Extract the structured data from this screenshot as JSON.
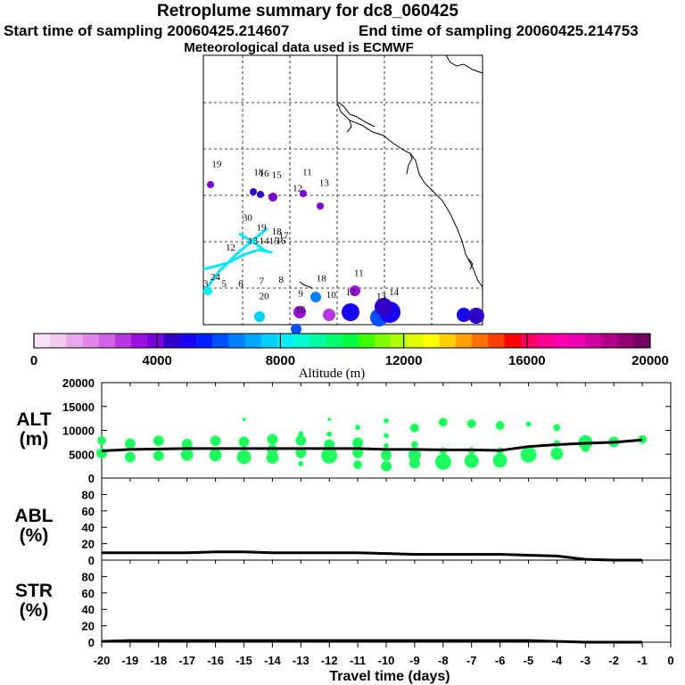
{
  "header": {
    "title": "Retroplume summary for dc8_060425",
    "start_label": "Start time of sampling 20060425.214607",
    "end_label": "End time of sampling 20060425.214753",
    "met_label": "Meteorological data used is ECMWF"
  },
  "map": {
    "labels": [
      {
        "text": "19",
        "lon": 0.03,
        "lat": 0.415
      },
      {
        "text": "18",
        "lon": 0.18,
        "lat": 0.445
      },
      {
        "text": "16",
        "lon": 0.2,
        "lat": 0.45
      },
      {
        "text": "15",
        "lon": 0.245,
        "lat": 0.455
      },
      {
        "text": "11",
        "lon": 0.355,
        "lat": 0.445
      },
      {
        "text": "13",
        "lon": 0.415,
        "lat": 0.485
      },
      {
        "text": "12",
        "lon": 0.32,
        "lat": 0.505
      },
      {
        "text": "30",
        "lon": 0.14,
        "lat": 0.615
      },
      {
        "text": "19",
        "lon": 0.19,
        "lat": 0.65
      },
      {
        "text": "18",
        "lon": 0.245,
        "lat": 0.665
      },
      {
        "text": "17",
        "lon": 0.27,
        "lat": 0.68
      },
      {
        "text": "12",
        "lon": 0.08,
        "lat": 0.725
      },
      {
        "text": "13",
        "lon": 0.16,
        "lat": 0.7
      },
      {
        "text": "14",
        "lon": 0.2,
        "lat": 0.7
      },
      {
        "text": "15",
        "lon": 0.235,
        "lat": 0.7
      },
      {
        "text": "16",
        "lon": 0.26,
        "lat": 0.7
      },
      {
        "text": "24",
        "lon": 0.025,
        "lat": 0.835
      },
      {
        "text": "3",
        "lon": 0.0,
        "lat": 0.86
      },
      {
        "text": "5",
        "lon": 0.065,
        "lat": 0.86
      },
      {
        "text": "6",
        "lon": 0.125,
        "lat": 0.86
      },
      {
        "text": "7",
        "lon": 0.2,
        "lat": 0.85
      },
      {
        "text": "8",
        "lon": 0.27,
        "lat": 0.845
      },
      {
        "text": "18",
        "lon": 0.405,
        "lat": 0.84
      },
      {
        "text": "11",
        "lon": 0.54,
        "lat": 0.82
      },
      {
        "text": "20",
        "lon": 0.2,
        "lat": 0.905
      },
      {
        "text": "9",
        "lon": 0.34,
        "lat": 0.895
      },
      {
        "text": "10",
        "lon": 0.44,
        "lat": 0.9
      },
      {
        "text": "12",
        "lon": 0.51,
        "lat": 0.89
      },
      {
        "text": "13",
        "lon": 0.62,
        "lat": 0.905
      },
      {
        "text": "14",
        "lon": 0.665,
        "lat": 0.89
      },
      {
        "text": "16",
        "lon": 0.33,
        "lat": 0.955
      }
    ]
  },
  "colorbar": {
    "title": "Altitude (m)",
    "tick_labels": [
      "0",
      "4000",
      "8000",
      "12000",
      "16000",
      "20000"
    ],
    "colors": [
      "#f7e1f7",
      "#f0c8f0",
      "#e8a8ec",
      "#e086e8",
      "#d060e4",
      "#b838e0",
      "#9a10dc",
      "#7800d8",
      "#3000c8",
      "#1800f0",
      "#0020ff",
      "#0050ff",
      "#0080ff",
      "#00a8ff",
      "#00d0ff",
      "#00f0ff",
      "#00ffd0",
      "#00ffa0",
      "#00ff70",
      "#00ff40",
      "#40ff00",
      "#80ff00",
      "#b0ff00",
      "#e0ff00",
      "#ffff00",
      "#ffd000",
      "#ffa000",
      "#ff7000",
      "#ff4000",
      "#ff0000",
      "#ff0060",
      "#ff0090",
      "#ff00b0",
      "#f000b0",
      "#d0009a",
      "#b00088",
      "#900070",
      "#700060"
    ]
  },
  "chart_data": [
    {
      "type": "scatter",
      "panel": "ALT",
      "ylabel": "ALT (m)",
      "ylim": [
        0,
        20000
      ],
      "yticks": [
        "20000",
        "15000",
        "10000",
        "5000",
        "0"
      ],
      "x": [
        -20,
        -19,
        -18,
        -17,
        -16,
        -15,
        -14,
        -13,
        -12,
        -11,
        -10,
        -9,
        -8,
        -7,
        -6,
        -5,
        -4,
        -3,
        -2,
        -1
      ],
      "median": [
        5700,
        6000,
        6100,
        6200,
        6200,
        6200,
        6200,
        6200,
        6200,
        6200,
        6000,
        6000,
        5900,
        5900,
        5800,
        6600,
        7000,
        7300,
        7500,
        8000
      ],
      "points": [
        [
          -20,
          7900,
          5
        ],
        [
          -20,
          5200,
          6
        ],
        [
          -19,
          7200,
          6
        ],
        [
          -19,
          4400,
          6
        ],
        [
          -18,
          7800,
          6
        ],
        [
          -18,
          4700,
          6
        ],
        [
          -17,
          7100,
          6
        ],
        [
          -17,
          4900,
          7
        ],
        [
          -16,
          7800,
          6
        ],
        [
          -16,
          4800,
          7
        ],
        [
          -15,
          12300,
          2
        ],
        [
          -15,
          7600,
          6
        ],
        [
          -15,
          4400,
          8
        ],
        [
          -14,
          8100,
          6
        ],
        [
          -14,
          5900,
          6
        ],
        [
          -14,
          4300,
          7
        ],
        [
          -13,
          9300,
          3
        ],
        [
          -13,
          7900,
          6
        ],
        [
          -13,
          5300,
          6
        ],
        [
          -13,
          3000,
          3
        ],
        [
          -12,
          12300,
          2
        ],
        [
          -12,
          9200,
          3
        ],
        [
          -12,
          7000,
          6
        ],
        [
          -12,
          4700,
          9
        ],
        [
          -11,
          10600,
          3
        ],
        [
          -11,
          7400,
          6
        ],
        [
          -11,
          5300,
          6
        ],
        [
          -11,
          2800,
          5
        ],
        [
          -10,
          12000,
          3
        ],
        [
          -10,
          8900,
          3
        ],
        [
          -10,
          6800,
          3
        ],
        [
          -10,
          4800,
          6
        ],
        [
          -10,
          2500,
          6
        ],
        [
          -9,
          10500,
          5
        ],
        [
          -9,
          7000,
          4
        ],
        [
          -9,
          4800,
          7
        ],
        [
          -9,
          3100,
          6
        ],
        [
          -8,
          11700,
          5
        ],
        [
          -8,
          5700,
          4
        ],
        [
          -8,
          3400,
          9
        ],
        [
          -7,
          11400,
          5
        ],
        [
          -7,
          5700,
          4
        ],
        [
          -7,
          3600,
          8
        ],
        [
          -6,
          11000,
          5
        ],
        [
          -6,
          5700,
          4
        ],
        [
          -6,
          3700,
          8
        ],
        [
          -5,
          11300,
          3
        ],
        [
          -5,
          4900,
          9
        ],
        [
          -5,
          3800,
          3
        ],
        [
          -4,
          10600,
          4
        ],
        [
          -4,
          7200,
          4
        ],
        [
          -4,
          5100,
          7
        ],
        [
          -3,
          7500,
          8
        ],
        [
          -3,
          6400,
          5
        ],
        [
          -2,
          7600,
          6
        ],
        [
          -1,
          8100,
          5
        ]
      ]
    },
    {
      "type": "line",
      "panel": "ABL",
      "ylabel": "ABL (%)",
      "ylim": [
        0,
        100
      ],
      "yticks": [
        "80",
        "60",
        "40",
        "20",
        "0"
      ],
      "x": [
        -20,
        -19,
        -18,
        -17,
        -16,
        -15,
        -14,
        -13,
        -12,
        -11,
        -10,
        -9,
        -8,
        -7,
        -6,
        -5,
        -4,
        -3,
        -2,
        -1
      ],
      "values": [
        9,
        9,
        9,
        9,
        10,
        10,
        9,
        9,
        9,
        9,
        8,
        7,
        7,
        7,
        7,
        6,
        5,
        1,
        0,
        0
      ]
    },
    {
      "type": "line",
      "panel": "STR",
      "ylabel": "STR (%)",
      "ylim": [
        0,
        100
      ],
      "yticks": [
        "80",
        "60",
        "40",
        "20",
        "0"
      ],
      "x": [
        -20,
        -19,
        -18,
        -17,
        -16,
        -15,
        -14,
        -13,
        -12,
        -11,
        -10,
        -9,
        -8,
        -7,
        -6,
        -5,
        -4,
        -3,
        -2,
        -1
      ],
      "values": [
        1,
        2,
        2,
        2,
        2,
        2,
        2,
        2,
        2,
        2,
        2,
        2,
        2,
        2,
        2,
        2,
        1,
        0,
        0,
        0
      ]
    }
  ],
  "xaxis": {
    "title": "Travel time (days)",
    "tick_labels": [
      "-20",
      "-19",
      "-18",
      "-17",
      "-16",
      "-15",
      "-14",
      "-13",
      "-12",
      "-11",
      "-10",
      "-9",
      "-8",
      "-7",
      "-6",
      "-5",
      "-4",
      "-3",
      "-2",
      "-1",
      "0"
    ]
  },
  "panel_labels": {
    "alt": [
      "ALT",
      "(m)"
    ],
    "abl": [
      "ABL",
      "(%)"
    ],
    "str": [
      "STR",
      "(%)"
    ]
  }
}
